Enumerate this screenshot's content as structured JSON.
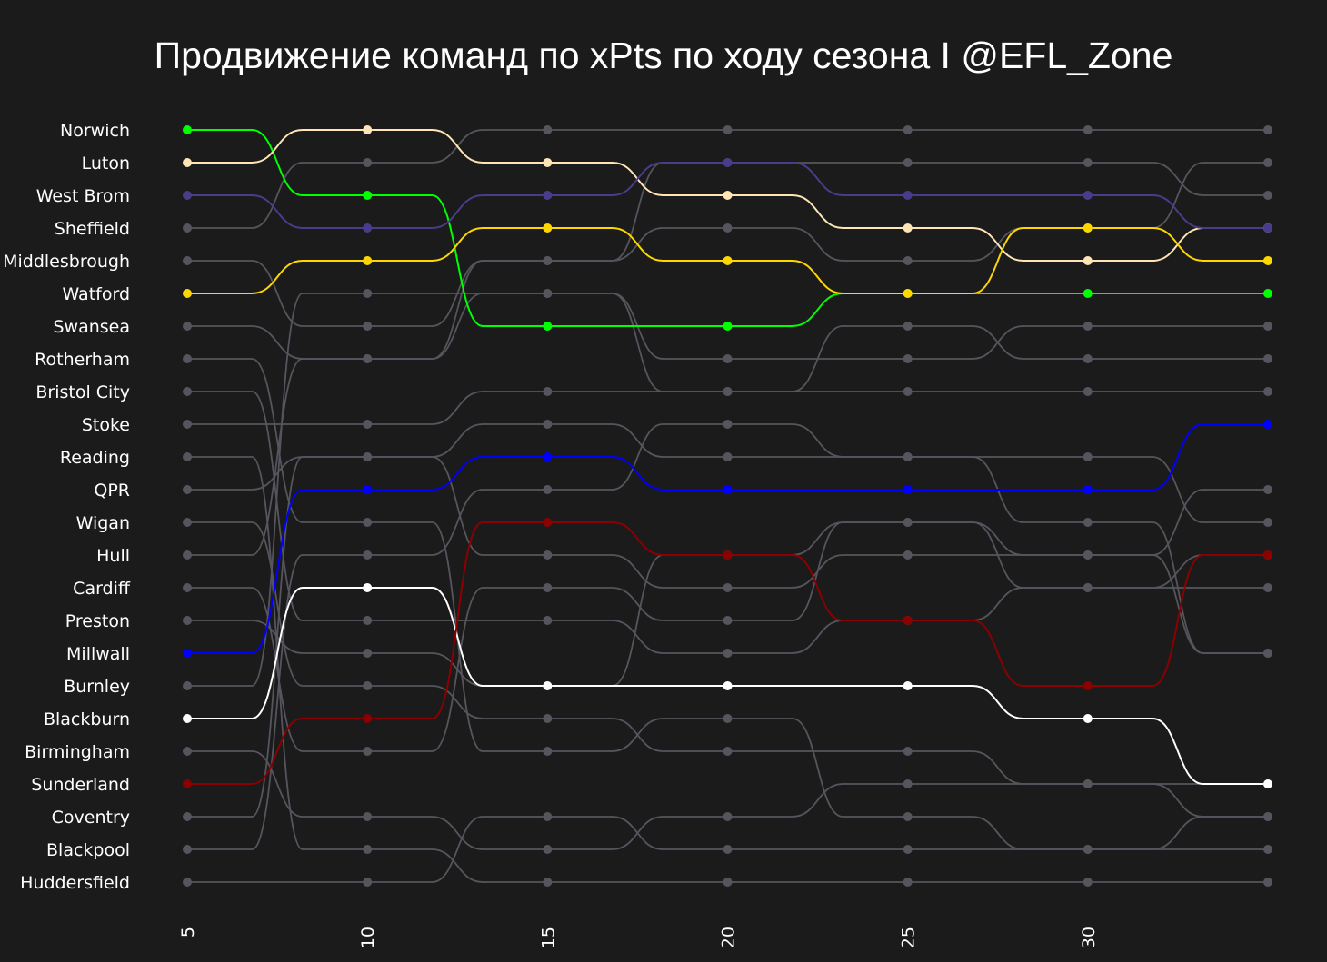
{
  "chart_data": {
    "type": "bump",
    "title": "Продвижение команд по xPts по ходу сезона I @EFL_Zone",
    "x_ticks": [
      "5",
      "10",
      "15",
      "20",
      "25",
      "30"
    ],
    "rounds": [
      5,
      10,
      15,
      20,
      25,
      30,
      35
    ],
    "default_color": "#55555e",
    "teams": [
      {
        "name": "Norwich",
        "color": "#00ff00",
        "highlight": true,
        "ranks": [
          1,
          3,
          7,
          7,
          6,
          6,
          6
        ]
      },
      {
        "name": "Luton",
        "color": "#ffe4b5",
        "highlight": true,
        "ranks": [
          2,
          1,
          2,
          3,
          4,
          5,
          4
        ]
      },
      {
        "name": "West Brom",
        "color": "#483d8b",
        "highlight": true,
        "ranks": [
          3,
          4,
          3,
          2,
          3,
          3,
          4
        ]
      },
      {
        "name": "Sheffield",
        "ranks": [
          4,
          2,
          1,
          1,
          1,
          1,
          1
        ]
      },
      {
        "name": "Middlesbrough",
        "ranks": [
          5,
          7,
          5,
          4,
          5,
          4,
          2
        ]
      },
      {
        "name": "Watford",
        "color": "#ffd700",
        "highlight": true,
        "ranks": [
          6,
          5,
          4,
          5,
          6,
          4,
          5
        ]
      },
      {
        "name": "Swansea",
        "ranks": [
          7,
          8,
          6,
          9,
          7,
          8,
          8
        ]
      },
      {
        "name": "Rotherham",
        "ranks": [
          8,
          13,
          20,
          19,
          22,
          23,
          22
        ]
      },
      {
        "name": "Bristol City",
        "ranks": [
          9,
          16,
          16,
          17,
          16,
          15,
          14
        ]
      },
      {
        "name": "Stoke",
        "ranks": [
          10,
          10,
          9,
          9,
          9,
          9,
          9
        ]
      },
      {
        "name": "Reading",
        "ranks": [
          11,
          23,
          24,
          24,
          24,
          24,
          24
        ]
      },
      {
        "name": "QPR",
        "ranks": [
          12,
          11,
          10,
          11,
          11,
          13,
          17
        ]
      },
      {
        "name": "Wigan",
        "ranks": [
          13,
          18,
          19,
          20,
          20,
          21,
          22
        ]
      },
      {
        "name": "Hull",
        "ranks": [
          14,
          8,
          5,
          2,
          2,
          2,
          3
        ]
      },
      {
        "name": "Cardiff",
        "ranks": [
          15,
          20,
          15,
          16,
          13,
          15,
          15
        ]
      },
      {
        "name": "Preston",
        "ranks": [
          16,
          17,
          18,
          14,
          13,
          14,
          12
        ]
      },
      {
        "name": "Millwall",
        "color": "#0000ff",
        "highlight": true,
        "ranks": [
          17,
          12,
          11,
          12,
          12,
          12,
          10
        ]
      },
      {
        "name": "Burnley",
        "ranks": [
          18,
          6,
          6,
          8,
          8,
          7,
          7
        ]
      },
      {
        "name": "Blackburn",
        "color": "#ffffff",
        "highlight": true,
        "ranks": [
          19,
          15,
          18,
          18,
          18,
          19,
          21
        ]
      },
      {
        "name": "Birmingham",
        "ranks": [
          20,
          22,
          23,
          22,
          21,
          21,
          21
        ]
      },
      {
        "name": "Sunderland",
        "color": "#8b0000",
        "highlight": true,
        "ranks": [
          21,
          19,
          13,
          14,
          16,
          18,
          14
        ]
      },
      {
        "name": "Coventry",
        "ranks": [
          22,
          11,
          14,
          15,
          14,
          14,
          17
        ]
      },
      {
        "name": "Blackpool",
        "ranks": [
          23,
          14,
          12,
          10,
          11,
          11,
          13
        ]
      },
      {
        "name": "Huddersfield",
        "ranks": [
          24,
          24,
          22,
          23,
          23,
          23,
          23
        ]
      }
    ]
  }
}
